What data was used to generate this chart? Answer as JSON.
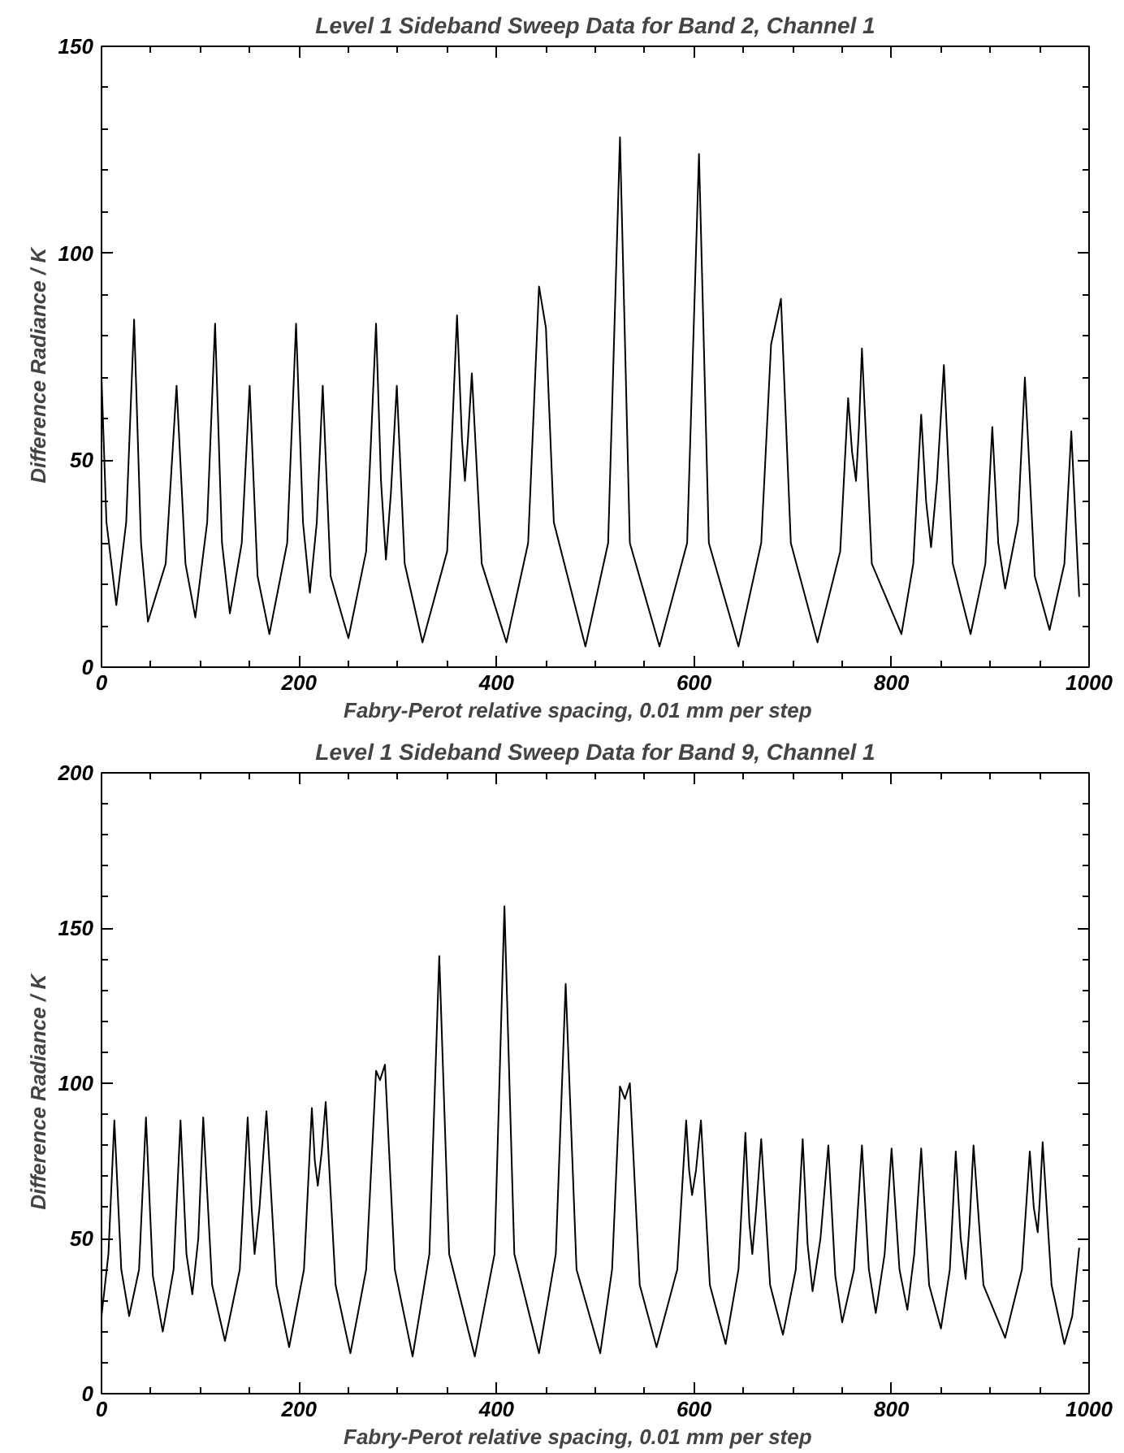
{
  "chart_data": [
    {
      "type": "line",
      "title": "Level 1 Sideband Sweep Data for Band 2, Channel 1",
      "xlabel": "Fabry-Perot  relative  spacing,  0.01  mm  per  step",
      "ylabel": "Difference  Radiance  /  K",
      "x": [
        0,
        5,
        15,
        25,
        33,
        40,
        47,
        65,
        76,
        85,
        95,
        107,
        115,
        122,
        130,
        142,
        150,
        158,
        170,
        188,
        197,
        204,
        211,
        218,
        224,
        232,
        250,
        268,
        278,
        283,
        288,
        293,
        299,
        307,
        325,
        350,
        360,
        365,
        368,
        371,
        375,
        385,
        410,
        432,
        443,
        450,
        458,
        490,
        513,
        525,
        535,
        565,
        593,
        605,
        615,
        645,
        668,
        678,
        688,
        698,
        725,
        748,
        756,
        760,
        764,
        767,
        770,
        780,
        810,
        822,
        830,
        835,
        840,
        846,
        853,
        862,
        880,
        895,
        902,
        908,
        915,
        928,
        935,
        945,
        960,
        975,
        982,
        990
      ],
      "values": [
        70,
        35,
        15,
        35,
        84,
        30,
        11,
        25,
        68,
        25,
        12,
        35,
        83,
        30,
        13,
        30,
        68,
        22,
        8,
        30,
        83,
        35,
        18,
        35,
        68,
        22,
        7,
        28,
        83,
        45,
        26,
        42,
        68,
        25,
        6,
        28,
        85,
        55,
        45,
        55,
        71,
        25,
        6,
        30,
        92,
        82,
        35,
        5,
        30,
        128,
        30,
        5,
        30,
        124,
        30,
        5,
        30,
        78,
        89,
        30,
        6,
        28,
        65,
        52,
        45,
        58,
        77,
        25,
        8,
        25,
        61,
        40,
        29,
        45,
        73,
        25,
        8,
        25,
        58,
        30,
        19,
        35,
        70,
        22,
        9,
        25,
        57,
        17
      ],
      "color": "#000000",
      "xlim": [
        0,
        1000
      ],
      "ylim": [
        0,
        150
      ],
      "xticks": [
        0,
        200,
        400,
        600,
        800,
        1000
      ],
      "yticks": [
        0,
        50,
        100,
        150
      ],
      "grid": false,
      "line_style": "solid"
    },
    {
      "type": "line",
      "title": "Level 1 Sideband Sweep Data for Band 9, Channel 1",
      "xlabel": "Fabry-Perot  relative  spacing,  0.01  mm  per  step",
      "ylabel": "Difference  Radiance  /  K",
      "x": [
        0,
        7,
        13,
        20,
        28,
        38,
        45,
        52,
        62,
        73,
        80,
        86,
        92,
        98,
        103,
        112,
        125,
        140,
        148,
        152,
        155,
        160,
        167,
        177,
        190,
        205,
        213,
        216,
        219,
        223,
        227,
        237,
        252,
        268,
        278,
        282,
        287,
        297,
        315,
        332,
        342,
        352,
        378,
        398,
        408,
        418,
        443,
        460,
        470,
        481,
        505,
        517,
        525,
        530,
        535,
        545,
        562,
        583,
        592,
        595,
        598,
        602,
        607,
        616,
        632,
        645,
        652,
        656,
        659,
        663,
        668,
        677,
        690,
        703,
        710,
        715,
        720,
        728,
        736,
        743,
        750,
        762,
        770,
        777,
        784,
        793,
        800,
        808,
        816,
        823,
        830,
        838,
        850,
        859,
        865,
        870,
        875,
        879,
        883,
        893,
        915,
        932,
        940,
        944,
        948,
        950,
        953,
        962,
        975,
        983,
        990
      ],
      "values": [
        25,
        45,
        88,
        40,
        25,
        40,
        89,
        38,
        20,
        40,
        88,
        45,
        32,
        50,
        89,
        35,
        17,
        40,
        89,
        60,
        45,
        60,
        91,
        35,
        15,
        40,
        92,
        75,
        67,
        78,
        94,
        35,
        13,
        40,
        104,
        101,
        106,
        40,
        12,
        45,
        141,
        45,
        12,
        45,
        157,
        45,
        13,
        45,
        132,
        40,
        13,
        40,
        99,
        95,
        100,
        35,
        15,
        40,
        88,
        72,
        64,
        72,
        88,
        35,
        16,
        40,
        84,
        55,
        45,
        60,
        82,
        35,
        19,
        40,
        82,
        48,
        33,
        50,
        80,
        38,
        23,
        40,
        80,
        40,
        26,
        45,
        79,
        40,
        27,
        45,
        79,
        35,
        21,
        40,
        78,
        50,
        37,
        55,
        80,
        35,
        18,
        40,
        78,
        60,
        52,
        62,
        81,
        35,
        16,
        25,
        47
      ],
      "color": "#000000",
      "xlim": [
        0,
        1000
      ],
      "ylim": [
        0,
        200
      ],
      "xticks": [
        0,
        200,
        400,
        600,
        800,
        1000
      ],
      "yticks": [
        0,
        50,
        100,
        150,
        200
      ],
      "grid": false,
      "line_style": "solid"
    }
  ]
}
